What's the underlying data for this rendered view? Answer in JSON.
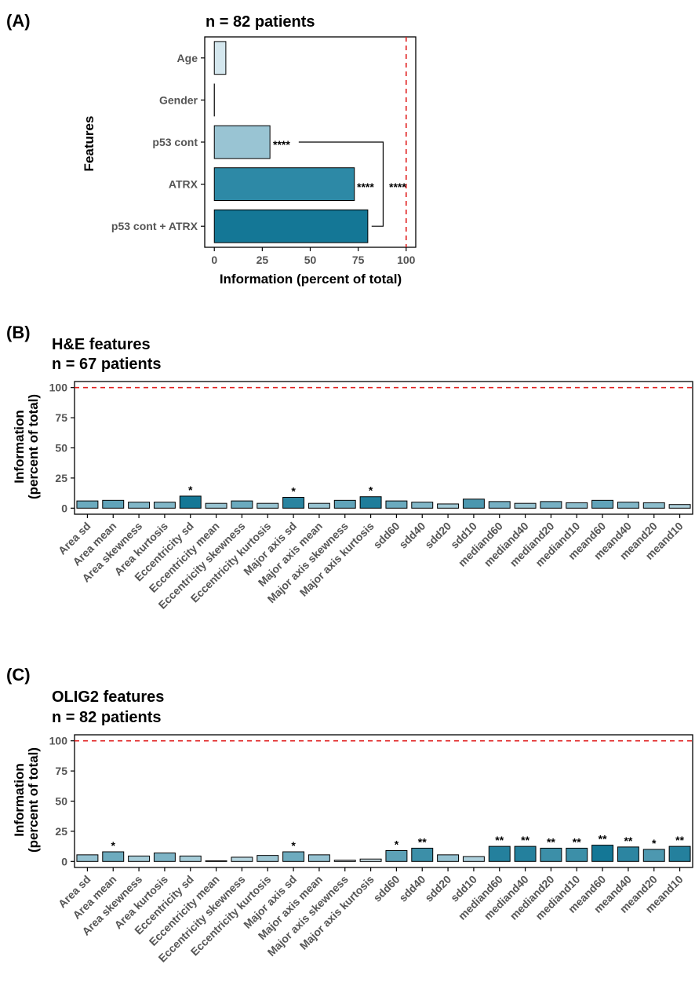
{
  "chart_data": [
    {
      "panel": "(A)",
      "type": "bar",
      "orientation": "horizontal",
      "title": "n = 82 patients",
      "xlabel": "Information (percent of total)",
      "ylabel": "Features",
      "categories": [
        "Age",
        "Gender",
        "p53 cont",
        "ATRX",
        "p53 cont + ATRX"
      ],
      "values": [
        6,
        0,
        29,
        73,
        80
      ],
      "colors": [
        "#d4e7ee",
        "#eef6f9",
        "#99c4d3",
        "#2d89a6",
        "#147796"
      ],
      "xlim": [
        -5,
        105
      ],
      "xticks": [
        0,
        25,
        50,
        75,
        100
      ],
      "reference_line": 100,
      "annotations": {
        "p53_star": "****",
        "atrx_star": "****",
        "bracket_star": "****"
      }
    },
    {
      "panel": "(B)",
      "type": "bar",
      "title": "H&E features",
      "subtitle": "n = 67 patients",
      "ylabel_line1": "Information",
      "ylabel_line2": "(percent of total)",
      "ylim": [
        -5,
        105
      ],
      "yticks": [
        0,
        25,
        50,
        75,
        100
      ],
      "reference_line": 100,
      "categories": [
        "Area sd",
        "Area mean",
        "Area skewness",
        "Area kurtosis",
        "Eccentricity sd",
        "Eccentricity mean",
        "Eccentricity skewness",
        "Eccentricity kurtosis",
        "Major axis sd",
        "Major axis mean",
        "Major axis skewness",
        "Major axis kurtosis",
        "sdd60",
        "sdd40",
        "sdd20",
        "sdd10",
        "mediand60",
        "mediand40",
        "mediand20",
        "mediand10",
        "meand60",
        "meand40",
        "meand20",
        "meand10"
      ],
      "values": [
        6,
        6.5,
        5,
        5,
        10,
        4,
        6,
        4,
        9,
        4,
        6.5,
        9.5,
        6,
        5,
        3.5,
        7.5,
        5.5,
        4,
        5.5,
        4.5,
        6.5,
        5,
        4.5,
        3
      ],
      "significance": [
        "",
        "",
        "",
        "",
        "*",
        "",
        "",
        "",
        "*",
        "",
        "",
        "*",
        "",
        "",
        "",
        "",
        "",
        "",
        "",
        "",
        "",
        "",
        "",
        ""
      ]
    },
    {
      "panel": "(C)",
      "type": "bar",
      "title": "OLIG2 features",
      "subtitle": "n = 82 patients",
      "ylabel_line1": "Information",
      "ylabel_line2": "(percent of total)",
      "ylim": [
        -5,
        105
      ],
      "yticks": [
        0,
        25,
        50,
        75,
        100
      ],
      "reference_line": 100,
      "categories": [
        "Area sd",
        "Area mean",
        "Area skewness",
        "Area kurtosis",
        "Eccentricity sd",
        "Eccentricity mean",
        "Eccentricity skewness",
        "Eccentricity kurtosis",
        "Major axis sd",
        "Major axis mean",
        "Major axis skewness",
        "Major axis kurtosis",
        "sdd60",
        "sdd40",
        "sdd20",
        "sdd10",
        "mediand60",
        "mediand40",
        "mediand20",
        "mediand10",
        "meand60",
        "meand40",
        "meand20",
        "meand10"
      ],
      "values": [
        5.5,
        8,
        4.5,
        7,
        4.5,
        0.5,
        3.5,
        5,
        8,
        5.5,
        1,
        2,
        9,
        11,
        5.5,
        4,
        12.5,
        12.5,
        11,
        11,
        13.5,
        12,
        10,
        12.5
      ],
      "significance": [
        "",
        "*",
        "",
        "",
        "",
        "",
        "",
        "",
        "*",
        "",
        "",
        "",
        "*",
        "**",
        "",
        "",
        "**",
        "**",
        "**",
        "**",
        "**",
        "**",
        "*",
        "**"
      ]
    }
  ]
}
